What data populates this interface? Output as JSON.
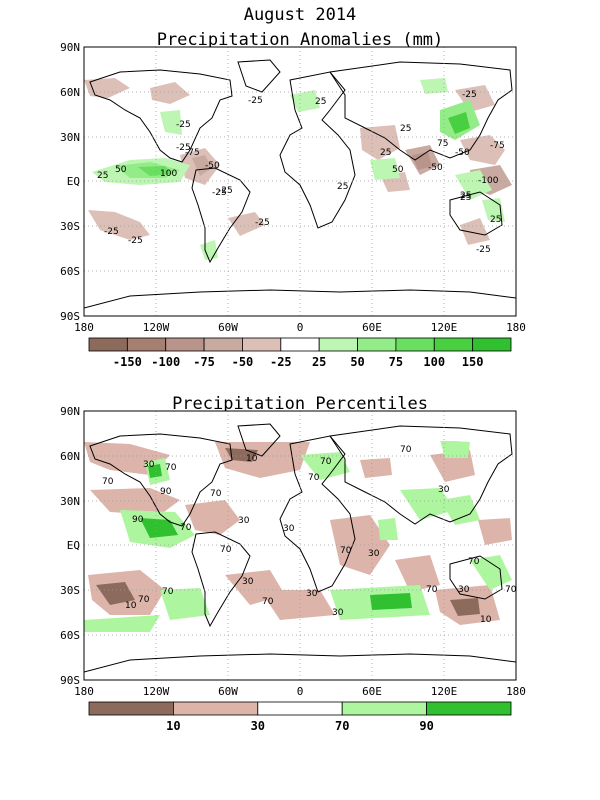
{
  "titles": {
    "month": "August 2014",
    "anomalies": "Precipitation Anomalies (mm)",
    "percentiles": "Precipitation Percentiles"
  },
  "axes": {
    "lat_labels": [
      "90N",
      "60N",
      "30N",
      "EQ",
      "30S",
      "60S",
      "90S"
    ],
    "lon_labels": [
      "180",
      "120W",
      "60W",
      "0",
      "60E",
      "120E",
      "180"
    ]
  },
  "anomaly_colorbar": {
    "labels": [
      "-150",
      "-100",
      "-75",
      "-50",
      "-25",
      "25",
      "50",
      "75",
      "100",
      "150"
    ],
    "colors": [
      "#8c6a5c",
      "#a47f72",
      "#b8948a",
      "#c9aaa0",
      "#dcc0b8",
      "#ffffff",
      "#bdf5b2",
      "#94ec88",
      "#6ade60",
      "#48d040",
      "#30c030"
    ]
  },
  "percentile_colorbar": {
    "labels": [
      "10",
      "30",
      "70",
      "90"
    ],
    "colors": [
      "#8c6a5c",
      "#dcb4aa",
      "#ffffff",
      "#aef5a0",
      "#30c030"
    ]
  },
  "anomaly_contour_labels": [
    "-25",
    "-25",
    "-25",
    "-25",
    "-25",
    "-25",
    "25",
    "25",
    "25",
    "25",
    "25",
    "25",
    "25",
    "50",
    "-50",
    "-50",
    "50",
    "-50",
    "-75",
    "75",
    "100",
    "-100",
    "-75",
    "-25",
    "-25",
    "25",
    "-25",
    "-25"
  ],
  "percentile_contour_labels": [
    "10",
    "30",
    "70",
    "70",
    "70",
    "70",
    "30",
    "70",
    "70",
    "90",
    "90",
    "70",
    "30",
    "70",
    "30",
    "10",
    "70",
    "70",
    "30",
    "70",
    "30",
    "70",
    "30",
    "70",
    "10",
    "70",
    "30",
    "30",
    "70"
  ]
}
